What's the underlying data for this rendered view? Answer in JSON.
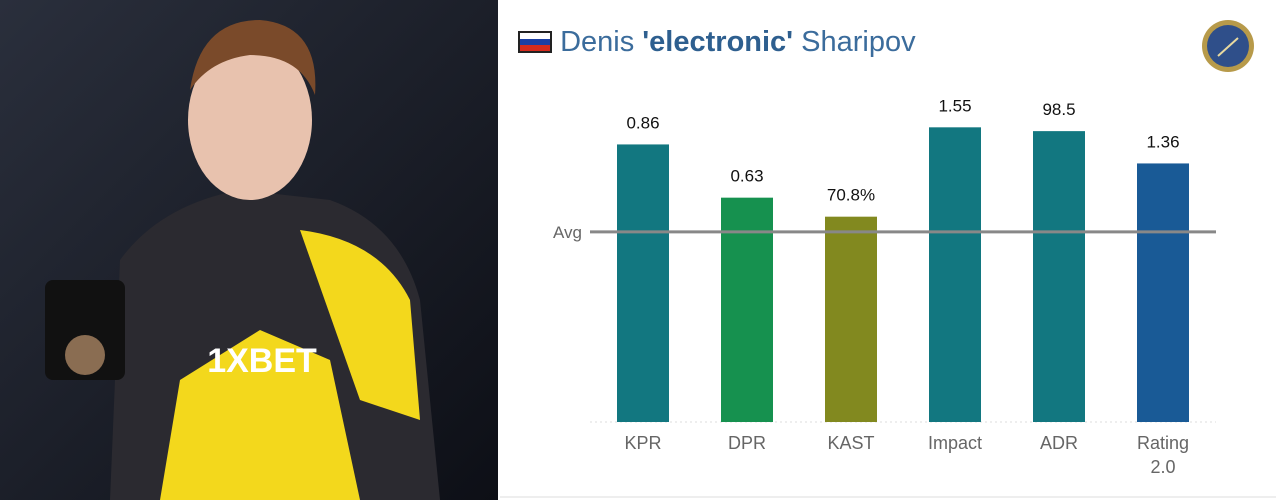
{
  "player": {
    "first_name": "Denis",
    "nickname": "'electronic'",
    "last_name": "Sharipov"
  },
  "chart_data": {
    "type": "bar",
    "categories": [
      "KPR",
      "DPR",
      "KAST",
      "Impact",
      "ADR",
      "Rating 2.0"
    ],
    "values": [
      1.46,
      1.18,
      1.08,
      1.55,
      1.53,
      1.36
    ],
    "value_labels": [
      "0.86",
      "0.63",
      "70.8%",
      "1.55",
      "98.5",
      "1.36"
    ],
    "colors": [
      "#127780",
      "#16914f",
      "#82891f",
      "#127780",
      "#127780",
      "#195a96"
    ],
    "ylim": [
      0,
      1.72
    ],
    "yticks": [
      {
        "value": 1,
        "label": "Avg"
      }
    ]
  }
}
